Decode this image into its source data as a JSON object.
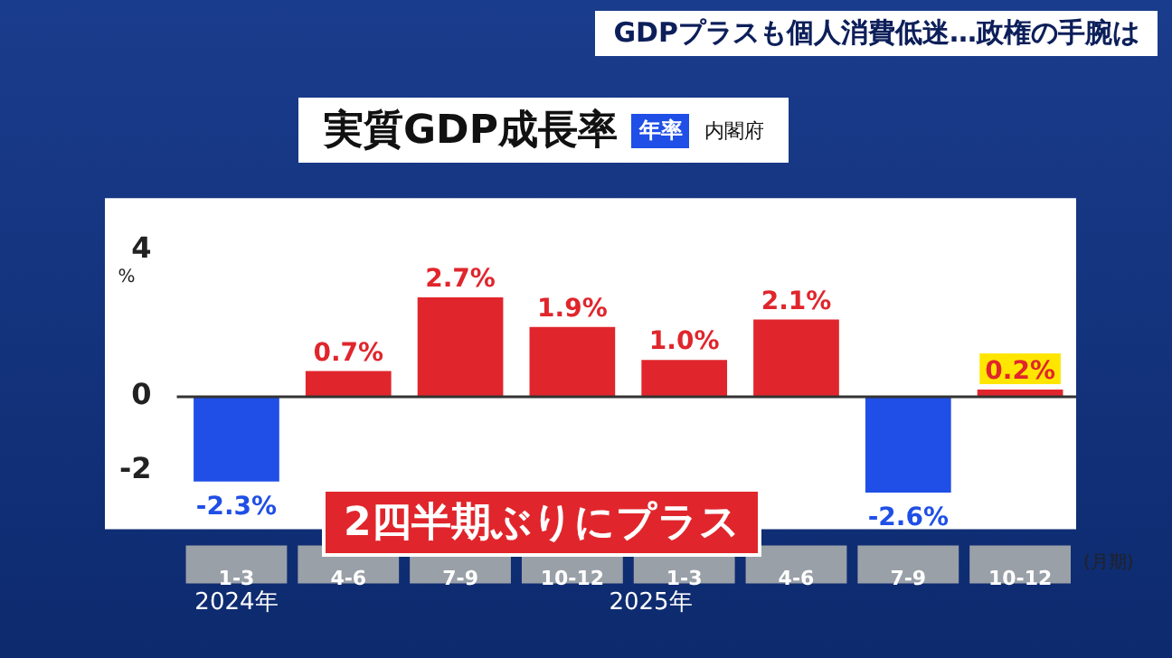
{
  "chart_data": {
    "type": "bar",
    "title": "実質GDP成長率",
    "subtitle": "GDPプラスも個人消費低迷…政権の手腕は",
    "ylabel": "%",
    "xlabel": "(月期)",
    "categories": [
      "1-3",
      "4-6",
      "7-9",
      "10-12",
      "1-3",
      "4-6",
      "7-9",
      "10-12"
    ],
    "values": [
      -2.3,
      0.7,
      2.7,
      1.9,
      1.0,
      2.1,
      -2.6,
      0.2
    ],
    "colors": [
      "#1f4fe6",
      "#e0262c",
      "#e0262c",
      "#e0262c",
      "#e0262c",
      "#e0262c",
      "#1f4fe6",
      "#e0262c"
    ],
    "value_labels": [
      "-2.3%",
      "0.7%",
      "2.7%",
      "1.9%",
      "1.0%",
      "2.1%",
      "-2.6%",
      "0.2%"
    ],
    "ylim": [
      -3.6,
      5.4
    ],
    "yticks": [
      4,
      0,
      -2
    ],
    "legend": false,
    "annotations": [
      "年率",
      "内閣府",
      "2024年",
      "2025年",
      "2四半期ぶりにプラス"
    ]
  }
}
